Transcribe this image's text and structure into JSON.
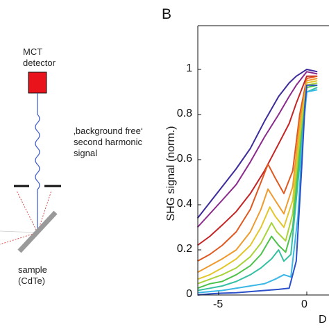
{
  "colors": {
    "detector": "#e8131b",
    "beam": "#3a57c8",
    "scatter": "#d63a3a",
    "aperture": "#111111",
    "sample": "#9a9a9a",
    "axis": "#111111"
  },
  "schematic": {
    "detector_label": [
      "MCT",
      "detector"
    ],
    "signal_label": [
      "‚background free‘",
      "second harmonic",
      "signal"
    ],
    "sample_label": [
      "sample",
      "(CdTe)"
    ]
  },
  "panel_label": "B",
  "chart_data": {
    "type": "line",
    "title": "",
    "xlabel": "D",
    "ylabel": "SHG signal (norm.)",
    "xlim": [
      -6.2,
      0.6
    ],
    "ylim": [
      0,
      1.08
    ],
    "x_ticks": [
      "-5",
      "0"
    ],
    "y_ticks": [
      "0",
      "0.2",
      "0.4",
      "0.6",
      "0.8",
      "1"
    ],
    "grid": false,
    "legend": "none",
    "series": [
      {
        "color": "#3d2a9b",
        "points": [
          [
            -6.2,
            0.34
          ],
          [
            -5.5,
            0.41
          ],
          [
            -4.8,
            0.48
          ],
          [
            -4.0,
            0.56
          ],
          [
            -3.2,
            0.65
          ],
          [
            -2.4,
            0.77
          ],
          [
            -1.6,
            0.88
          ],
          [
            -1.0,
            0.94
          ],
          [
            -0.6,
            0.97
          ],
          [
            -0.2,
            0.99
          ],
          [
            0.0,
            1.0
          ],
          [
            0.6,
            0.99
          ]
        ]
      },
      {
        "color": "#8b2a8c",
        "points": [
          [
            -6.2,
            0.3
          ],
          [
            -5.5,
            0.36
          ],
          [
            -4.8,
            0.42
          ],
          [
            -4.0,
            0.49
          ],
          [
            -3.2,
            0.59
          ],
          [
            -2.4,
            0.7
          ],
          [
            -1.6,
            0.8
          ],
          [
            -1.0,
            0.88
          ],
          [
            -0.6,
            0.93
          ],
          [
            -0.2,
            0.97
          ],
          [
            0.0,
            0.99
          ],
          [
            0.6,
            0.98
          ]
        ]
      },
      {
        "color": "#c42424",
        "points": [
          [
            -6.2,
            0.22
          ],
          [
            -5.5,
            0.26
          ],
          [
            -4.8,
            0.31
          ],
          [
            -4.0,
            0.37
          ],
          [
            -3.2,
            0.45
          ],
          [
            -2.4,
            0.55
          ],
          [
            -1.6,
            0.67
          ],
          [
            -1.0,
            0.76
          ],
          [
            -0.6,
            0.85
          ],
          [
            -0.2,
            0.93
          ],
          [
            0.0,
            0.97
          ],
          [
            0.6,
            0.97
          ]
        ]
      },
      {
        "color": "#e0581f",
        "points": [
          [
            -6.2,
            0.15
          ],
          [
            -5.5,
            0.18
          ],
          [
            -4.8,
            0.22
          ],
          [
            -4.0,
            0.28
          ],
          [
            -3.2,
            0.38
          ],
          [
            -2.6,
            0.5
          ],
          [
            -2.2,
            0.58
          ],
          [
            -1.8,
            0.52
          ],
          [
            -1.3,
            0.45
          ],
          [
            -0.8,
            0.55
          ],
          [
            -0.4,
            0.8
          ],
          [
            0.0,
            0.96
          ],
          [
            0.6,
            0.97
          ]
        ]
      },
      {
        "color": "#ef9a2e",
        "points": [
          [
            -6.2,
            0.1
          ],
          [
            -5.5,
            0.13
          ],
          [
            -4.8,
            0.16
          ],
          [
            -4.0,
            0.2
          ],
          [
            -3.2,
            0.28
          ],
          [
            -2.6,
            0.38
          ],
          [
            -2.2,
            0.47
          ],
          [
            -1.8,
            0.42
          ],
          [
            -1.3,
            0.36
          ],
          [
            -0.8,
            0.48
          ],
          [
            -0.4,
            0.76
          ],
          [
            0.0,
            0.95
          ],
          [
            0.6,
            0.96
          ]
        ]
      },
      {
        "color": "#e3c62b",
        "points": [
          [
            -6.2,
            0.07
          ],
          [
            -5.5,
            0.09
          ],
          [
            -4.8,
            0.12
          ],
          [
            -4.0,
            0.16
          ],
          [
            -3.2,
            0.22
          ],
          [
            -2.6,
            0.3
          ],
          [
            -2.1,
            0.39
          ],
          [
            -1.8,
            0.35
          ],
          [
            -1.3,
            0.3
          ],
          [
            -0.8,
            0.42
          ],
          [
            -0.4,
            0.72
          ],
          [
            0.0,
            0.94
          ],
          [
            0.6,
            0.95
          ]
        ]
      },
      {
        "color": "#a9d33a",
        "points": [
          [
            -6.2,
            0.05
          ],
          [
            -5.5,
            0.07
          ],
          [
            -4.8,
            0.09
          ],
          [
            -4.0,
            0.12
          ],
          [
            -3.2,
            0.17
          ],
          [
            -2.6,
            0.23
          ],
          [
            -2.0,
            0.32
          ],
          [
            -1.7,
            0.28
          ],
          [
            -1.2,
            0.24
          ],
          [
            -0.8,
            0.36
          ],
          [
            -0.4,
            0.68
          ],
          [
            0.0,
            0.93
          ],
          [
            0.6,
            0.94
          ]
        ]
      },
      {
        "color": "#4cc24a",
        "points": [
          [
            -6.2,
            0.03
          ],
          [
            -5.5,
            0.05
          ],
          [
            -4.8,
            0.06
          ],
          [
            -4.0,
            0.09
          ],
          [
            -3.2,
            0.13
          ],
          [
            -2.6,
            0.18
          ],
          [
            -2.0,
            0.26
          ],
          [
            -1.6,
            0.22
          ],
          [
            -1.2,
            0.19
          ],
          [
            -0.8,
            0.3
          ],
          [
            -0.4,
            0.63
          ],
          [
            0.0,
            0.92
          ],
          [
            0.6,
            0.93
          ]
        ]
      },
      {
        "color": "#36c0a3",
        "points": [
          [
            -6.2,
            0.02
          ],
          [
            -5.5,
            0.03
          ],
          [
            -4.8,
            0.04
          ],
          [
            -4.0,
            0.06
          ],
          [
            -3.2,
            0.09
          ],
          [
            -2.6,
            0.12
          ],
          [
            -2.0,
            0.16
          ],
          [
            -1.6,
            0.2
          ],
          [
            -1.3,
            0.15
          ],
          [
            -0.9,
            0.18
          ],
          [
            -0.5,
            0.5
          ],
          [
            0.0,
            0.9
          ],
          [
            0.6,
            0.92
          ]
        ]
      },
      {
        "color": "#3ab7e6",
        "points": [
          [
            -6.2,
            0.01
          ],
          [
            -5.5,
            0.015
          ],
          [
            -4.8,
            0.02
          ],
          [
            -4.0,
            0.03
          ],
          [
            -3.2,
            0.04
          ],
          [
            -2.4,
            0.05
          ],
          [
            -1.8,
            0.07
          ],
          [
            -1.3,
            0.09
          ],
          [
            -0.9,
            0.08
          ],
          [
            -0.5,
            0.35
          ],
          [
            -0.2,
            0.75
          ],
          [
            0.0,
            0.9
          ],
          [
            0.6,
            0.91
          ]
        ]
      },
      {
        "color": "#2a4fc8",
        "points": [
          [
            -6.2,
            0.0
          ],
          [
            -5.5,
            0.005
          ],
          [
            -4.8,
            0.008
          ],
          [
            -4.0,
            0.01
          ],
          [
            -3.2,
            0.015
          ],
          [
            -2.4,
            0.02
          ],
          [
            -1.6,
            0.025
          ],
          [
            -1.0,
            0.03
          ],
          [
            -0.6,
            0.15
          ],
          [
            -0.3,
            0.55
          ],
          [
            -0.1,
            0.85
          ],
          [
            0.0,
            0.93
          ],
          [
            0.6,
            0.93
          ]
        ]
      }
    ]
  }
}
